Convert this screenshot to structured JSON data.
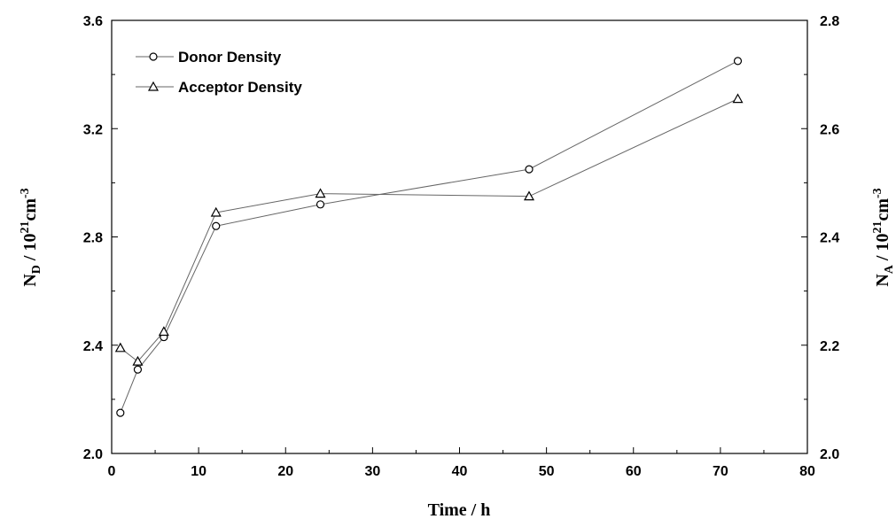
{
  "chart_data": {
    "type": "line",
    "xlabel": "Time / h",
    "ylabel_left": {
      "main": "N",
      "sub": "D",
      "mid": " / 10",
      "sup": "21",
      "unit": "cm",
      "unit_sup": "-3"
    },
    "ylabel_right": {
      "main": "N",
      "sub": "A",
      "mid": " / 10",
      "sup": "21",
      "unit": "cm",
      "unit_sup": "-3"
    },
    "xlim": [
      0,
      80
    ],
    "ylim_left": [
      2.0,
      3.6
    ],
    "ylim_right": [
      2.0,
      2.8
    ],
    "x_ticks": [
      "0",
      "10",
      "20",
      "30",
      "40",
      "50",
      "60",
      "70",
      "80"
    ],
    "y_left_ticks": [
      "2.0",
      "2.4",
      "2.8",
      "3.2",
      "3.6"
    ],
    "y_right_ticks": [
      "2.0",
      "2.2",
      "2.4",
      "2.6",
      "2.8"
    ],
    "grid": false,
    "legend_position": "top-left",
    "series": [
      {
        "name": "Donor Density",
        "axis": "left",
        "marker": "circle",
        "x": [
          1,
          3,
          6,
          12,
          24,
          48,
          72
        ],
        "y": [
          2.15,
          2.31,
          2.43,
          2.84,
          2.92,
          3.05,
          3.45
        ]
      },
      {
        "name": "Acceptor Density",
        "axis": "right",
        "marker": "triangle",
        "x": [
          1,
          3,
          6,
          12,
          24,
          48,
          72
        ],
        "y": [
          2.195,
          2.17,
          2.225,
          2.445,
          2.48,
          2.475,
          2.655
        ]
      }
    ]
  }
}
